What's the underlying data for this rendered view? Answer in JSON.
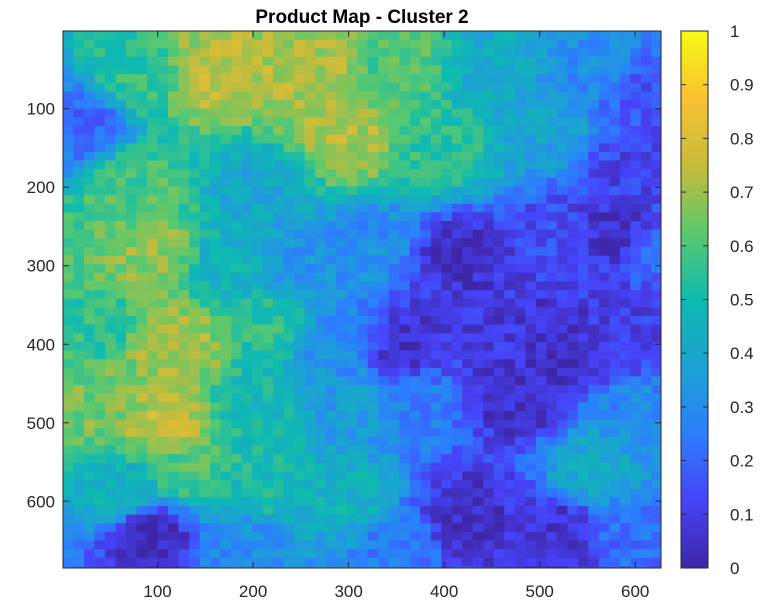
{
  "chart_data": {
    "type": "heatmap",
    "title": "Product Map - Cluster 2",
    "xlabel": "",
    "ylabel": "",
    "x_range": [
      1,
      627
    ],
    "y_range": [
      1,
      685
    ],
    "y_reversed": true,
    "x_ticks": [
      100,
      200,
      300,
      400,
      500,
      600
    ],
    "x_tick_labels": [
      "100",
      "200",
      "300",
      "400",
      "500",
      "600"
    ],
    "y_ticks": [
      100,
      200,
      300,
      400,
      500,
      600
    ],
    "y_tick_labels": [
      "100",
      "200",
      "300",
      "400",
      "500",
      "600"
    ],
    "colorbar": {
      "range": [
        0,
        1
      ],
      "ticks": [
        0,
        0.1,
        0.2,
        0.3,
        0.4,
        0.5,
        0.6,
        0.7,
        0.8,
        0.9,
        1
      ],
      "tick_labels": [
        "0",
        "0.1",
        "0.2",
        "0.3",
        "0.4",
        "0.5",
        "0.6",
        "0.7",
        "0.8",
        "0.9",
        "1"
      ],
      "colormap": "parula",
      "colormap_stops": [
        "#3e26a8",
        "#4743f8",
        "#2c7ffd",
        "#1ca2d3",
        "#0fbab0",
        "#5cc86d",
        "#c6bc3c",
        "#f9c131",
        "#f9fa14"
      ]
    },
    "grid": false,
    "legend": "colorbar-right",
    "regions": [
      {
        "x": 80,
        "y": 60,
        "value": 0.55
      },
      {
        "x": 160,
        "y": 60,
        "value": 0.75
      },
      {
        "x": 260,
        "y": 60,
        "value": 0.72
      },
      {
        "x": 360,
        "y": 40,
        "value": 0.6
      },
      {
        "x": 450,
        "y": 40,
        "value": 0.42
      },
      {
        "x": 560,
        "y": 50,
        "value": 0.3
      },
      {
        "x": 610,
        "y": 80,
        "value": 0.15
      },
      {
        "x": 300,
        "y": 140,
        "value": 0.72
      },
      {
        "x": 400,
        "y": 150,
        "value": 0.55
      },
      {
        "x": 500,
        "y": 130,
        "value": 0.38
      },
      {
        "x": 600,
        "y": 180,
        "value": 0.12
      },
      {
        "x": 80,
        "y": 200,
        "value": 0.6
      },
      {
        "x": 200,
        "y": 200,
        "value": 0.4
      },
      {
        "x": 20,
        "y": 120,
        "value": 0.2
      },
      {
        "x": 90,
        "y": 280,
        "value": 0.68
      },
      {
        "x": 180,
        "y": 300,
        "value": 0.45
      },
      {
        "x": 250,
        "y": 300,
        "value": 0.32
      },
      {
        "x": 320,
        "y": 280,
        "value": 0.3
      },
      {
        "x": 420,
        "y": 290,
        "value": 0.04
      },
      {
        "x": 520,
        "y": 260,
        "value": 0.14
      },
      {
        "x": 580,
        "y": 260,
        "value": 0.05
      },
      {
        "x": 620,
        "y": 280,
        "value": 0.2
      },
      {
        "x": 30,
        "y": 380,
        "value": 0.55
      },
      {
        "x": 120,
        "y": 400,
        "value": 0.72
      },
      {
        "x": 220,
        "y": 380,
        "value": 0.55
      },
      {
        "x": 280,
        "y": 400,
        "value": 0.3
      },
      {
        "x": 360,
        "y": 400,
        "value": 0.06
      },
      {
        "x": 440,
        "y": 360,
        "value": 0.08
      },
      {
        "x": 520,
        "y": 400,
        "value": 0.05
      },
      {
        "x": 590,
        "y": 380,
        "value": 0.1
      },
      {
        "x": 40,
        "y": 480,
        "value": 0.65
      },
      {
        "x": 110,
        "y": 500,
        "value": 0.75
      },
      {
        "x": 200,
        "y": 480,
        "value": 0.5
      },
      {
        "x": 300,
        "y": 480,
        "value": 0.35
      },
      {
        "x": 380,
        "y": 480,
        "value": 0.25
      },
      {
        "x": 470,
        "y": 470,
        "value": 0.05
      },
      {
        "x": 560,
        "y": 560,
        "value": 0.42
      },
      {
        "x": 610,
        "y": 500,
        "value": 0.3
      },
      {
        "x": 60,
        "y": 590,
        "value": 0.45
      },
      {
        "x": 130,
        "y": 560,
        "value": 0.6
      },
      {
        "x": 210,
        "y": 580,
        "value": 0.5
      },
      {
        "x": 300,
        "y": 600,
        "value": 0.45
      },
      {
        "x": 420,
        "y": 620,
        "value": 0.04
      },
      {
        "x": 520,
        "y": 640,
        "value": 0.06
      },
      {
        "x": 350,
        "y": 650,
        "value": 0.25
      },
      {
        "x": 600,
        "y": 640,
        "value": 0.22
      },
      {
        "x": 90,
        "y": 640,
        "value": 0.03
      },
      {
        "x": 200,
        "y": 660,
        "value": 0.3
      }
    ]
  }
}
